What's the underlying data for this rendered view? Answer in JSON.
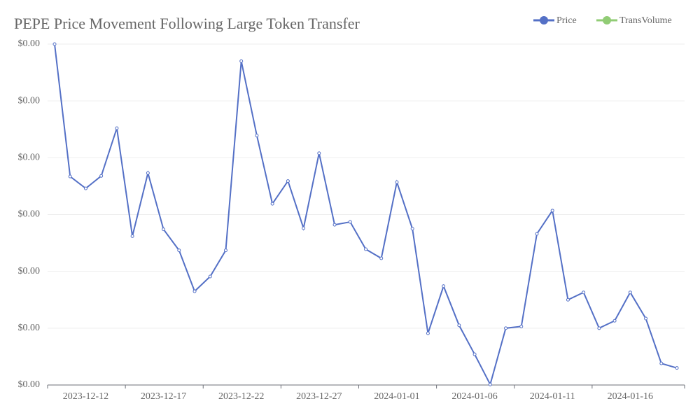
{
  "chart_data": {
    "type": "line",
    "title": "PEPE Price Movement Following Large Token Transfer",
    "categories": [
      null,
      null,
      "2023-12-12",
      null,
      null,
      null,
      null,
      "2023-12-17",
      null,
      null,
      null,
      null,
      "2023-12-22",
      null,
      null,
      null,
      null,
      "2023-12-27",
      null,
      null,
      null,
      null,
      "2024-01-01",
      null,
      null,
      null,
      null,
      "2024-01-06",
      null,
      null,
      null,
      null,
      "2024-01-11",
      null,
      null,
      null,
      null,
      "2024-01-16",
      null,
      null,
      null
    ],
    "series": [
      {
        "name": "Price",
        "color": "#5470c6",
        "values": [
          1.5e-06,
          1.267e-06,
          1.246e-06,
          1.268e-06,
          1.352e-06,
          1.162e-06,
          1.273e-06,
          1.174e-06,
          1.137e-06,
          1.065e-06,
          1.091e-06,
          1.137e-06,
          1.47e-06,
          1.339e-06,
          1.219e-06,
          1.259e-06,
          1.176e-06,
          1.308e-06,
          1.182e-06,
          1.187e-06,
          1.139e-06,
          1.123e-06,
          1.257e-06,
          1.175e-06,
          9.91e-07,
          1.074e-06,
          1.005e-06,
          9.54e-07,
          9.01e-07,
          1e-06,
          1.003e-06,
          1.166e-06,
          1.207e-06,
          1.05e-06,
          1.063e-06,
          1e-06,
          1.013e-06,
          1.063e-06,
          1.017e-06,
          9.38e-07,
          9.3e-07
        ]
      },
      {
        "name": "TransVolume",
        "color": "#91cc75",
        "values": [
          null,
          null,
          null,
          null,
          null,
          null,
          null,
          null,
          null,
          null,
          null,
          null,
          null,
          null,
          null,
          null,
          null,
          null,
          null,
          null,
          null,
          null,
          null,
          null,
          null,
          null,
          null,
          null,
          null,
          null,
          null,
          null,
          null,
          null,
          null,
          null,
          null,
          null,
          null,
          null,
          null
        ]
      }
    ],
    "ylim": [
      9e-07,
      1.5e-06
    ],
    "yticks": [
      {
        "value": 9e-07,
        "label": "$0.00"
      },
      {
        "value": 1e-06,
        "label": "$0.00"
      },
      {
        "value": 1.1e-06,
        "label": "$0.00"
      },
      {
        "value": 1.2e-06,
        "label": "$0.00"
      },
      {
        "value": 1.3e-06,
        "label": "$0.00"
      },
      {
        "value": 1.4e-06,
        "label": "$0.00"
      },
      {
        "value": 1.5e-06,
        "label": "$0.00"
      }
    ],
    "grid": true
  }
}
